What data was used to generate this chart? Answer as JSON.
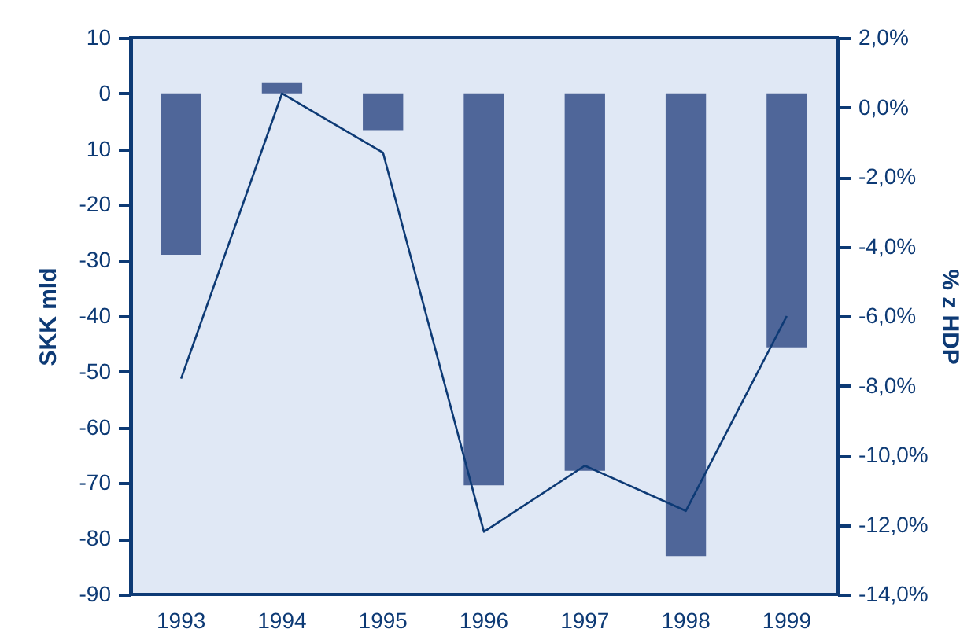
{
  "chart_data": {
    "type": "bar",
    "categories": [
      "1993",
      "1994",
      "1995",
      "1996",
      "1997",
      "1998",
      "1999"
    ],
    "ylabel": "SKK mld",
    "y2label": "% z HDP",
    "ylim": [
      -90,
      10
    ],
    "yticks": [
      10,
      0,
      {
        "value": -10,
        "label": "10"
      },
      -20,
      -30,
      -40,
      -50,
      -60,
      -70,
      -80,
      -90
    ],
    "y2lim": [
      -14,
      2
    ],
    "y2ticks": [
      {
        "value": 2,
        "label": "2,0%"
      },
      {
        "value": 0,
        "label": "0,0%"
      },
      {
        "value": -2,
        "label": "-2,0%"
      },
      {
        "value": -4,
        "label": "-4,0%"
      },
      {
        "value": -6,
        "label": "-6,0%"
      },
      {
        "value": -8,
        "label": "-8,0%"
      },
      {
        "value": -10,
        "label": "-10,0%"
      },
      {
        "value": -12,
        "label": "-12,0%"
      },
      {
        "value": -14,
        "label": "-14,0%"
      }
    ],
    "series": [
      {
        "color": "#4f6699",
        "values": [
          -29,
          2,
          -6.6,
          -70.4,
          -67.8,
          -83.1,
          -45.6
        ]
      },
      {
        "type": "line",
        "axis": "y2",
        "color": "#0d3a75",
        "values": [
          -7.8,
          0.4,
          -1.3,
          -12.2,
          -10.3,
          -11.6,
          -6.0
        ]
      }
    ]
  }
}
